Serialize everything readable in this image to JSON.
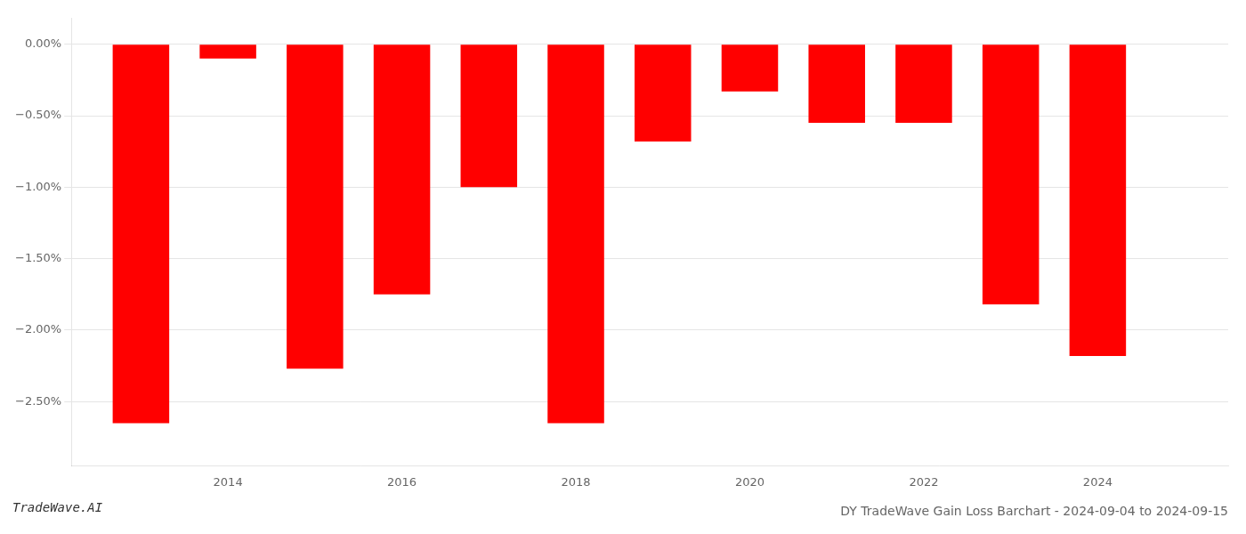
{
  "chart_data": {
    "type": "bar",
    "title": "DY TradeWave Gain Loss Barchart - 2024-09-04 to 2024-09-15",
    "annotations": [
      "TradeWave.AI"
    ],
    "x": [
      2013,
      2014,
      2015,
      2016,
      2017,
      2018,
      2019,
      2020,
      2021,
      2022,
      2023,
      2024
    ],
    "values": [
      -2.65,
      -0.1,
      -2.27,
      -1.75,
      -1.0,
      -2.65,
      -0.68,
      -0.33,
      -0.55,
      -0.55,
      -1.82,
      -2.18
    ],
    "color": "#ff0000",
    "xlim": [
      2012.2,
      2025.5
    ],
    "xticks": [
      2014,
      2016,
      2018,
      2020,
      2022,
      2024
    ],
    "ylim": [
      -2.95,
      0.18
    ],
    "yticks": [
      {
        "value": 0.0,
        "label": "0.00%"
      },
      {
        "value": -0.5,
        "label": "−0.50%"
      },
      {
        "value": -1.0,
        "label": "−1.00%"
      },
      {
        "value": -1.5,
        "label": "−1.50%"
      },
      {
        "value": -2.0,
        "label": "−2.00%"
      },
      {
        "value": -2.5,
        "label": "−2.50%"
      }
    ],
    "grid": true
  }
}
